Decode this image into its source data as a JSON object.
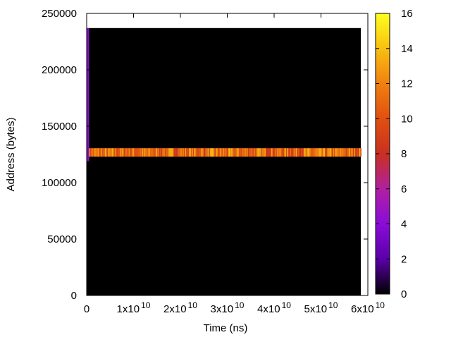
{
  "chart_data": {
    "type": "heatmap",
    "xlabel": "Time (ns)",
    "ylabel": "Address (bytes)",
    "xlim": [
      0,
      60000000000.0
    ],
    "ylim": [
      0,
      250000
    ],
    "x_ticks": [
      {
        "value": 0,
        "mantissa": "0",
        "exponent": ""
      },
      {
        "value": 10000000000.0,
        "mantissa": "1x10",
        "exponent": "10"
      },
      {
        "value": 20000000000.0,
        "mantissa": "2x10",
        "exponent": "10"
      },
      {
        "value": 30000000000.0,
        "mantissa": "3x10",
        "exponent": "10"
      },
      {
        "value": 40000000000.0,
        "mantissa": "4x10",
        "exponent": "10"
      },
      {
        "value": 50000000000.0,
        "mantissa": "5x10",
        "exponent": "10"
      },
      {
        "value": 60000000000.0,
        "mantissa": "6x10",
        "exponent": "10"
      }
    ],
    "y_ticks": [
      0,
      50000,
      100000,
      150000,
      200000,
      250000
    ],
    "y_tick_labels": [
      "0",
      "50000",
      "100000",
      "150000",
      "200000",
      "250000"
    ],
    "colorbar": {
      "range": [
        0,
        16
      ],
      "ticks": [
        0,
        2,
        4,
        6,
        8,
        10,
        12,
        14,
        16
      ],
      "tick_labels": [
        "0",
        "2",
        "4",
        "6",
        "8",
        "10",
        "12",
        "14",
        "16"
      ],
      "palette": [
        "#000000",
        "#5a00a8",
        "#8a0cd8",
        "#b020a0",
        "#c83020",
        "#e05010",
        "#f08010",
        "#f8c010",
        "#ffff20"
      ]
    },
    "data_region": {
      "x": [
        0,
        58500000000.0
      ],
      "y": [
        0,
        237000
      ],
      "background_value": 0
    },
    "bands": [
      {
        "x": [
          300000000.0,
          58500000000.0
        ],
        "y": [
          123000,
          130500
        ],
        "value_range": [
          8,
          14
        ],
        "description": "hot band"
      },
      {
        "x": [
          100000000.0,
          500000000.0
        ],
        "y": [
          119000,
          237000
        ],
        "value_range": [
          2,
          6
        ],
        "description": "initial spike"
      }
    ]
  }
}
